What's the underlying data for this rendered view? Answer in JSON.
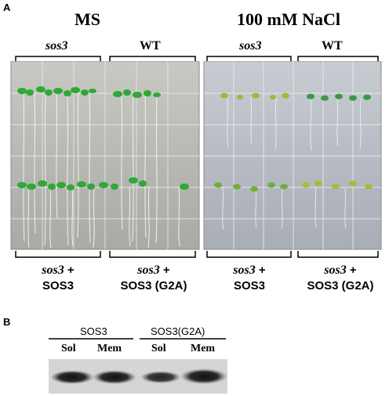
{
  "panel_a": {
    "letter": "A",
    "conditions": [
      "MS",
      "100 mM NaCl"
    ],
    "top_labels": [
      "sos3",
      "WT",
      "sos3",
      "WT"
    ],
    "bottom_labels": [
      {
        "genotype": "sos3",
        "construct": "SOS3"
      },
      {
        "genotype": "sos3",
        "construct": "SOS3 (G2A)"
      },
      {
        "genotype": "sos3",
        "construct": "SOS3"
      },
      {
        "genotype": "sos3",
        "construct": "SOS3 (G2A)"
      }
    ],
    "plus_sign": "+"
  },
  "panel_b": {
    "letter": "B",
    "group_labels": [
      "SOS3",
      "SOS3(G2A)"
    ],
    "lane_labels": [
      "Sol",
      "Mem",
      "Sol",
      "Mem"
    ]
  }
}
